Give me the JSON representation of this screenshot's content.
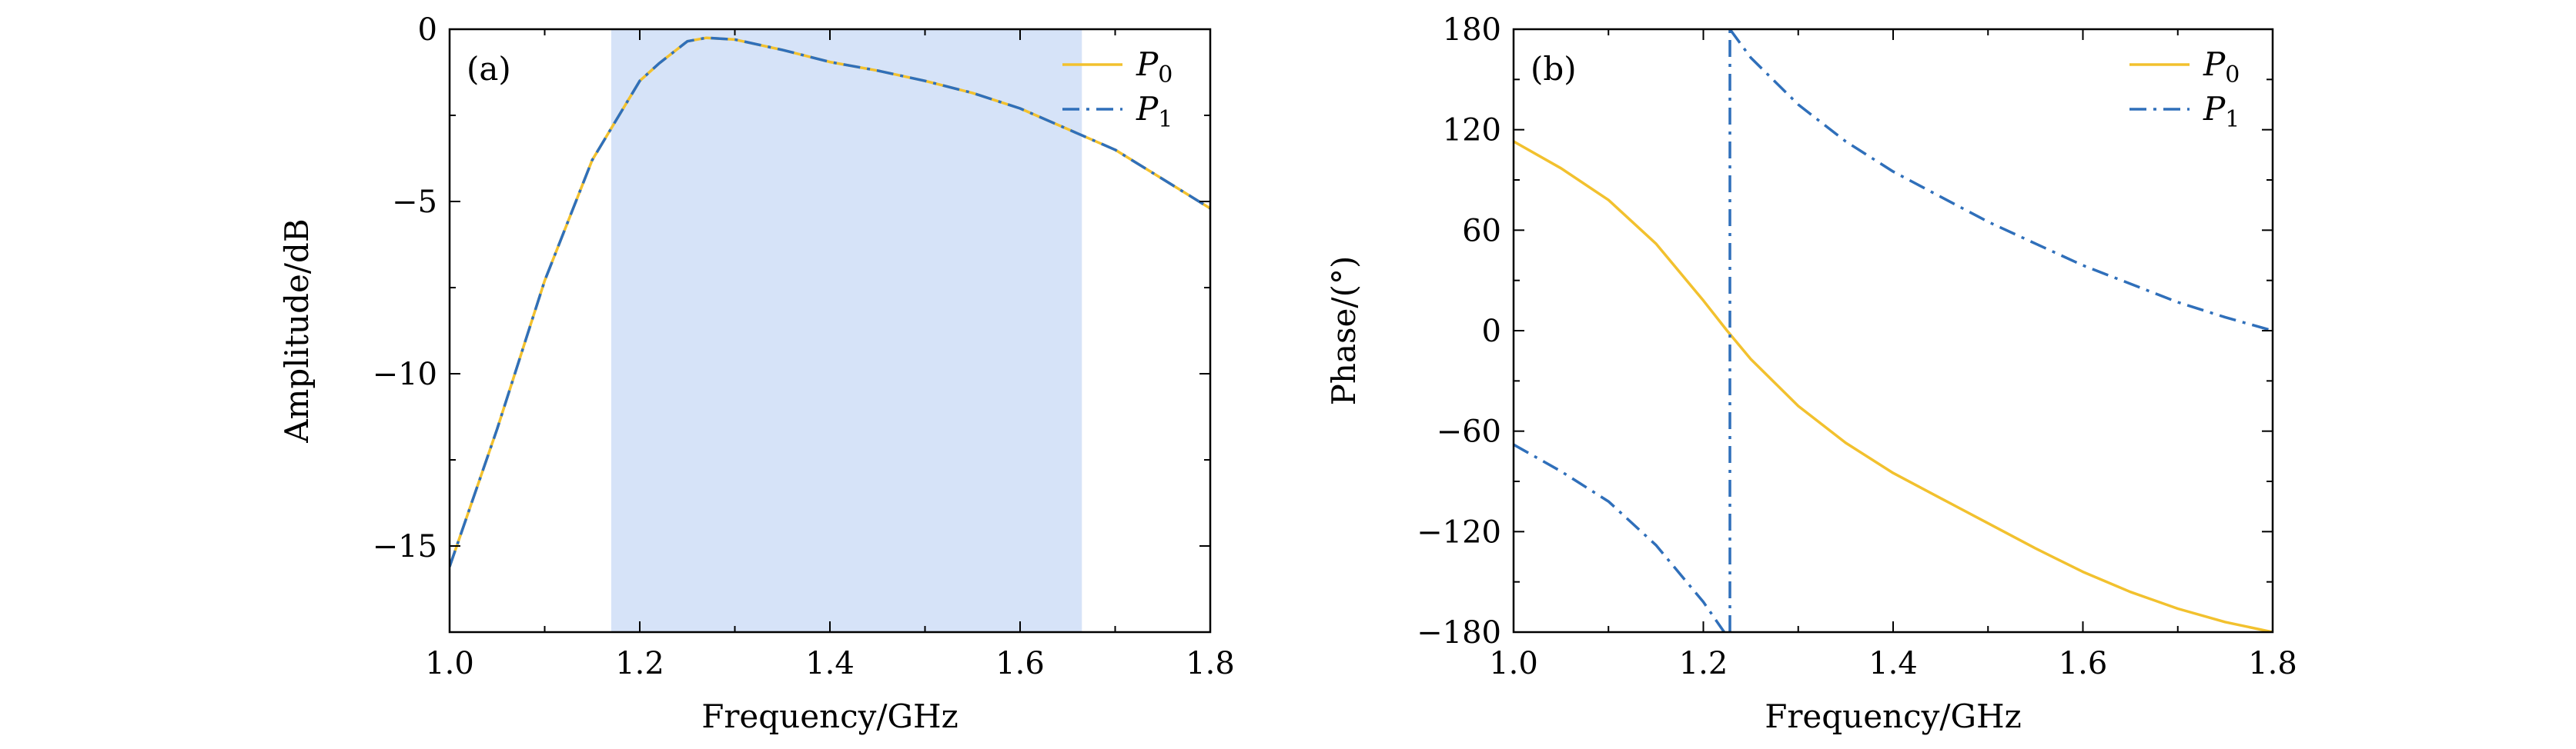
{
  "chart_data": [
    {
      "id": "a",
      "type": "line",
      "panel_label": "(a)",
      "xlabel": "Frequency/GHz",
      "ylabel": "Amplitude/dB",
      "xlim": [
        1.0,
        1.8
      ],
      "ylim": [
        -17.5,
        0
      ],
      "xticks": [
        1.0,
        1.2,
        1.4,
        1.6,
        1.8
      ],
      "xtick_labels": [
        "1.0",
        "1.2",
        "1.4",
        "1.6",
        "1.8"
      ],
      "yticks": [
        0,
        -5,
        -10,
        -15
      ],
      "ytick_labels": [
        "0",
        "−5",
        "−10",
        "−15"
      ],
      "highlight_band": {
        "x_range": [
          1.17,
          1.665
        ],
        "color": "#d6e3f8"
      },
      "legend_position": "top-right",
      "grid": false,
      "series": [
        {
          "name": "P0",
          "legend_main": "P",
          "legend_sub": "0",
          "color": "#f2c12e",
          "dash": "solid",
          "x": [
            1.0,
            1.05,
            1.1,
            1.15,
            1.2,
            1.22,
            1.25,
            1.27,
            1.3,
            1.35,
            1.4,
            1.45,
            1.5,
            1.55,
            1.6,
            1.65,
            1.7,
            1.75,
            1.8
          ],
          "y": [
            -15.6,
            -11.6,
            -7.3,
            -3.8,
            -1.5,
            -1.0,
            -0.35,
            -0.25,
            -0.3,
            -0.6,
            -0.95,
            -1.2,
            -1.5,
            -1.85,
            -2.3,
            -2.9,
            -3.5,
            -4.35,
            -5.2
          ]
        },
        {
          "name": "P1",
          "legend_main": "P",
          "legend_sub": "1",
          "color": "#2f6fba",
          "dash": "dashdot",
          "x": [
            1.0,
            1.05,
            1.1,
            1.15,
            1.2,
            1.22,
            1.25,
            1.27,
            1.3,
            1.35,
            1.4,
            1.45,
            1.5,
            1.55,
            1.6,
            1.65,
            1.7,
            1.75,
            1.8
          ],
          "y": [
            -15.6,
            -11.6,
            -7.3,
            -3.8,
            -1.5,
            -1.0,
            -0.35,
            -0.25,
            -0.3,
            -0.6,
            -0.95,
            -1.2,
            -1.5,
            -1.85,
            -2.3,
            -2.9,
            -3.5,
            -4.35,
            -5.2
          ]
        }
      ]
    },
    {
      "id": "b",
      "type": "line",
      "panel_label": "(b)",
      "xlabel": "Frequency/GHz",
      "ylabel": "Phase/(°)",
      "xlim": [
        1.0,
        1.8
      ],
      "ylim": [
        -180,
        180
      ],
      "xticks": [
        1.0,
        1.2,
        1.4,
        1.6,
        1.8
      ],
      "xtick_labels": [
        "1.0",
        "1.2",
        "1.4",
        "1.6",
        "1.8"
      ],
      "yticks": [
        180,
        120,
        60,
        0,
        -60,
        -120,
        -180
      ],
      "ytick_labels": [
        "180",
        "120",
        "60",
        "0",
        "−60",
        "−120",
        "−180"
      ],
      "legend_position": "top-right",
      "grid": false,
      "series": [
        {
          "name": "P0",
          "legend_main": "P",
          "legend_sub": "0",
          "color": "#f2c12e",
          "dash": "solid",
          "x": [
            1.0,
            1.05,
            1.1,
            1.15,
            1.2,
            1.225,
            1.25,
            1.3,
            1.35,
            1.4,
            1.45,
            1.5,
            1.55,
            1.6,
            1.65,
            1.7,
            1.75,
            1.8
          ],
          "y": [
            113,
            97,
            78,
            52,
            18,
            0,
            -17,
            -45,
            -67,
            -85,
            -100,
            -115,
            -130,
            -144,
            -156,
            -166,
            -174,
            -180
          ]
        },
        {
          "name": "P1",
          "legend_main": "P",
          "legend_sub": "1",
          "color": "#2f6fba",
          "dash": "dashdot",
          "segments": [
            {
              "x": [
                1.0,
                1.05,
                1.1,
                1.15,
                1.2,
                1.222
              ],
              "y": [
                -68,
                -84,
                -102,
                -128,
                -162,
                -180
              ]
            },
            {
              "x": [
                1.228,
                1.228
              ],
              "y": [
                -180,
                180
              ]
            },
            {
              "x": [
                1.228,
                1.25,
                1.3,
                1.35,
                1.4,
                1.45,
                1.5,
                1.55,
                1.6,
                1.65,
                1.7,
                1.75,
                1.8
              ],
              "y": [
                180,
                163,
                135,
                113,
                95,
                80,
                65,
                52,
                39,
                28,
                17,
                8,
                0
              ]
            }
          ]
        }
      ]
    }
  ]
}
